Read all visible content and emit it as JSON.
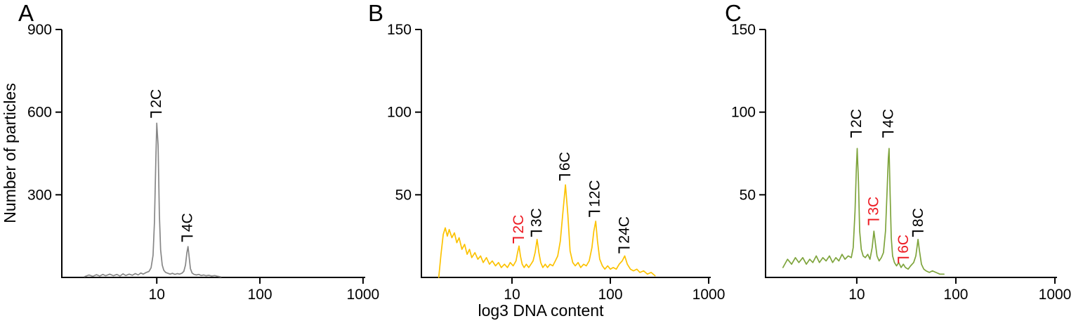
{
  "figure": {
    "xlabel": "log3 DNA content",
    "ylabel": "Number of particles",
    "background": "#ffffff"
  },
  "chart_data": [
    {
      "type": "line",
      "panel": "A",
      "color": "#878787",
      "xscale": "log",
      "xlim": [
        1.2,
        1050
      ],
      "xticks": [
        10,
        100,
        1000
      ],
      "ylim": [
        0,
        900
      ],
      "yticks": [
        300,
        600,
        900
      ],
      "annotations": [
        {
          "label": "2C",
          "x": 10,
          "y": 600,
          "color": "#000000"
        },
        {
          "label": "4C",
          "x": 20,
          "y": 150,
          "color": "#000000"
        }
      ],
      "points": [
        [
          2.0,
          3
        ],
        [
          2.2,
          9
        ],
        [
          2.4,
          4
        ],
        [
          2.6,
          10
        ],
        [
          2.8,
          5
        ],
        [
          3.0,
          11
        ],
        [
          3.2,
          6
        ],
        [
          3.5,
          12
        ],
        [
          3.8,
          6
        ],
        [
          4.1,
          11
        ],
        [
          4.4,
          5
        ],
        [
          4.7,
          13
        ],
        [
          5.0,
          7
        ],
        [
          5.4,
          12
        ],
        [
          5.8,
          8
        ],
        [
          6.2,
          14
        ],
        [
          6.6,
          9
        ],
        [
          7.0,
          16
        ],
        [
          7.4,
          12
        ],
        [
          7.9,
          18
        ],
        [
          8.4,
          22
        ],
        [
          8.8,
          35
        ],
        [
          9.2,
          80
        ],
        [
          9.5,
          200
        ],
        [
          9.8,
          430
        ],
        [
          10.0,
          560
        ],
        [
          10.3,
          480
        ],
        [
          10.6,
          230
        ],
        [
          10.9,
          100
        ],
        [
          11.3,
          45
        ],
        [
          11.7,
          26
        ],
        [
          12.2,
          18
        ],
        [
          12.8,
          15
        ],
        [
          13.5,
          12
        ],
        [
          14.2,
          15
        ],
        [
          15.0,
          11
        ],
        [
          15.8,
          14
        ],
        [
          16.6,
          12
        ],
        [
          17.5,
          15
        ],
        [
          18.3,
          22
        ],
        [
          19.0,
          45
        ],
        [
          19.6,
          90
        ],
        [
          20.1,
          112
        ],
        [
          20.6,
          75
        ],
        [
          21.2,
          32
        ],
        [
          22.0,
          16
        ],
        [
          23.0,
          11
        ],
        [
          24.2,
          9
        ],
        [
          25.5,
          11
        ],
        [
          27.0,
          7
        ],
        [
          28.5,
          9
        ],
        [
          30.0,
          6
        ],
        [
          32.0,
          8
        ],
        [
          34.0,
          5
        ],
        [
          36.5,
          7
        ],
        [
          39.0,
          4
        ],
        [
          42.0,
          2
        ]
      ]
    },
    {
      "type": "line",
      "panel": "B",
      "color": "#fcc200",
      "xscale": "log",
      "xlim": [
        1.2,
        1050
      ],
      "xticks": [
        10,
        100,
        1000
      ],
      "ylim": [
        0,
        150
      ],
      "yticks": [
        50,
        100,
        150
      ],
      "annotations": [
        {
          "label": "2C",
          "x": 11.8,
          "y": 24,
          "color": "#ed1c24"
        },
        {
          "label": "3C",
          "x": 18,
          "y": 28,
          "color": "#000000"
        },
        {
          "label": "6C",
          "x": 35,
          "y": 62,
          "color": "#000000"
        },
        {
          "label": "12C",
          "x": 70,
          "y": 40,
          "color": "#000000"
        },
        {
          "label": "24C",
          "x": 140,
          "y": 18,
          "color": "#000000"
        }
      ],
      "points": [
        [
          1.8,
          0
        ],
        [
          1.9,
          14
        ],
        [
          2.0,
          26
        ],
        [
          2.1,
          30
        ],
        [
          2.2,
          25
        ],
        [
          2.3,
          29
        ],
        [
          2.45,
          24
        ],
        [
          2.6,
          27
        ],
        [
          2.75,
          21
        ],
        [
          2.9,
          24
        ],
        [
          3.1,
          17
        ],
        [
          3.3,
          20
        ],
        [
          3.5,
          14
        ],
        [
          3.7,
          17
        ],
        [
          3.9,
          12
        ],
        [
          4.2,
          15
        ],
        [
          4.5,
          11
        ],
        [
          4.8,
          13
        ],
        [
          5.1,
          9
        ],
        [
          5.5,
          12
        ],
        [
          5.9,
          8
        ],
        [
          6.3,
          10
        ],
        [
          6.8,
          7
        ],
        [
          7.3,
          9
        ],
        [
          7.8,
          6
        ],
        [
          8.4,
          8
        ],
        [
          9.0,
          6
        ],
        [
          9.6,
          9
        ],
        [
          10.3,
          7
        ],
        [
          11.0,
          10
        ],
        [
          11.4,
          15
        ],
        [
          11.8,
          19
        ],
        [
          12.2,
          13
        ],
        [
          12.7,
          8
        ],
        [
          13.3,
          6
        ],
        [
          14.0,
          8
        ],
        [
          14.8,
          6
        ],
        [
          15.6,
          8
        ],
        [
          16.4,
          10
        ],
        [
          17.2,
          15
        ],
        [
          18.0,
          23
        ],
        [
          18.8,
          15
        ],
        [
          19.6,
          9
        ],
        [
          20.6,
          6
        ],
        [
          21.8,
          8
        ],
        [
          23.0,
          6
        ],
        [
          24.4,
          8
        ],
        [
          26.0,
          7
        ],
        [
          27.6,
          10
        ],
        [
          29.2,
          13
        ],
        [
          31.0,
          22
        ],
        [
          33.0,
          40
        ],
        [
          35.0,
          56
        ],
        [
          37.0,
          38
        ],
        [
          39.0,
          16
        ],
        [
          41.5,
          9
        ],
        [
          44.0,
          7
        ],
        [
          47.0,
          9
        ],
        [
          50.0,
          6
        ],
        [
          53.5,
          8
        ],
        [
          57.0,
          7
        ],
        [
          61.0,
          10
        ],
        [
          65.0,
          18
        ],
        [
          68.0,
          28
        ],
        [
          71.0,
          34
        ],
        [
          74.0,
          22
        ],
        [
          78.0,
          11
        ],
        [
          83.0,
          7
        ],
        [
          88.0,
          5
        ],
        [
          94.0,
          7
        ],
        [
          100,
          5
        ],
        [
          107,
          6
        ],
        [
          115,
          5
        ],
        [
          123,
          8
        ],
        [
          132,
          10
        ],
        [
          140,
          13
        ],
        [
          149,
          8
        ],
        [
          160,
          5
        ],
        [
          172,
          4
        ],
        [
          186,
          5
        ],
        [
          200,
          3
        ],
        [
          218,
          4
        ],
        [
          238,
          2
        ],
        [
          260,
          3
        ],
        [
          285,
          1
        ]
      ]
    },
    {
      "type": "line",
      "panel": "C",
      "color": "#7ea43c",
      "xscale": "log",
      "xlim": [
        1.2,
        1050
      ],
      "xticks": [
        10,
        100,
        1000
      ],
      "ylim": [
        0,
        150
      ],
      "yticks": [
        50,
        100,
        150
      ],
      "annotations": [
        {
          "label": "2C",
          "x": 10,
          "y": 88,
          "color": "#000000"
        },
        {
          "label": "3C",
          "x": 15,
          "y": 35,
          "color": "#ed1c24"
        },
        {
          "label": "4C",
          "x": 21,
          "y": 88,
          "color": "#000000"
        },
        {
          "label": "6C",
          "x": 30,
          "y": 12,
          "color": "#ed1c24"
        },
        {
          "label": "8C",
          "x": 42,
          "y": 28,
          "color": "#000000"
        }
      ],
      "points": [
        [
          1.8,
          6
        ],
        [
          2.0,
          11
        ],
        [
          2.2,
          8
        ],
        [
          2.4,
          12
        ],
        [
          2.6,
          9
        ],
        [
          2.85,
          12
        ],
        [
          3.1,
          8
        ],
        [
          3.35,
          11
        ],
        [
          3.6,
          9
        ],
        [
          3.9,
          13
        ],
        [
          4.2,
          9
        ],
        [
          4.55,
          12
        ],
        [
          4.9,
          10
        ],
        [
          5.3,
          13
        ],
        [
          5.7,
          9
        ],
        [
          6.15,
          12
        ],
        [
          6.6,
          10
        ],
        [
          7.1,
          14
        ],
        [
          7.6,
          11
        ],
        [
          8.2,
          13
        ],
        [
          8.8,
          12
        ],
        [
          9.2,
          18
        ],
        [
          9.6,
          40
        ],
        [
          9.9,
          66
        ],
        [
          10.1,
          78
        ],
        [
          10.4,
          58
        ],
        [
          10.7,
          28
        ],
        [
          11.1,
          17
        ],
        [
          11.6,
          13
        ],
        [
          12.2,
          12
        ],
        [
          12.9,
          14
        ],
        [
          13.6,
          11
        ],
        [
          14.3,
          18
        ],
        [
          14.9,
          28
        ],
        [
          15.4,
          21
        ],
        [
          16.0,
          13
        ],
        [
          16.8,
          10
        ],
        [
          17.7,
          12
        ],
        [
          18.6,
          15
        ],
        [
          19.5,
          28
        ],
        [
          20.3,
          55
        ],
        [
          20.8,
          72
        ],
        [
          21.2,
          78
        ],
        [
          21.7,
          50
        ],
        [
          22.3,
          24
        ],
        [
          23.0,
          13
        ],
        [
          24.0,
          9
        ],
        [
          25.2,
          7
        ],
        [
          26.5,
          9
        ],
        [
          28.0,
          6
        ],
        [
          29.5,
          8
        ],
        [
          31.0,
          6
        ],
        [
          33.0,
          5
        ],
        [
          35.0,
          7
        ],
        [
          37.5,
          9
        ],
        [
          39.5,
          13
        ],
        [
          41.5,
          23
        ],
        [
          43.0,
          16
        ],
        [
          45.0,
          8
        ],
        [
          47.5,
          5
        ],
        [
          50.0,
          4
        ],
        [
          54.0,
          3
        ],
        [
          58.0,
          4
        ],
        [
          63.0,
          3
        ],
        [
          69.0,
          2
        ],
        [
          76.0,
          2
        ]
      ]
    }
  ]
}
